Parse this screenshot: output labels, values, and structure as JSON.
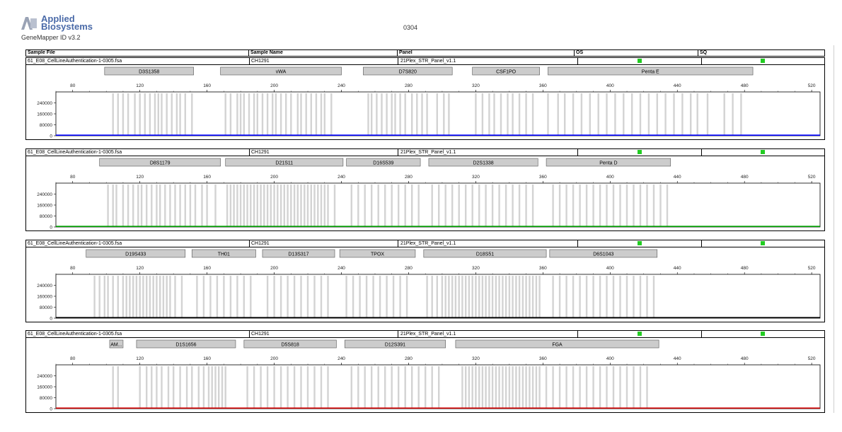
{
  "header": {
    "brand_line1": "Applied",
    "brand_line2": "Biosystems",
    "app_version": "GeneMapper ID v3.2",
    "report_id": "0304"
  },
  "table": {
    "col_sample_file": "Sample File",
    "col_sample_name": "Sample Name",
    "col_panel": "Panel",
    "col_os": "OS",
    "col_sq": "SQ"
  },
  "sample": {
    "file": "61_E08_CellLineAuthentication-1-0305.fsa",
    "name": "CH1291",
    "panel": "21Plex_STR_Panel_v1.1"
  },
  "colors": {
    "quality_flag": "#22cc22",
    "bin": "#d3d3d3",
    "marker_bar": "#cccccc",
    "panel_traces": [
      "#0000ff",
      "#00a000",
      "#000000",
      "#d00000"
    ]
  },
  "chart_data": [
    {
      "type": "line",
      "xlim": [
        70,
        525
      ],
      "ylim": [
        0,
        320000
      ],
      "x_ticks": [
        80,
        120,
        160,
        200,
        240,
        280,
        320,
        360,
        400,
        440,
        480,
        520
      ],
      "y_ticks": [
        0,
        80000,
        160000,
        240000
      ],
      "y_tick_labels": [
        "0",
        "80000",
        "160000",
        "240000"
      ],
      "trace_color": "#0000ff",
      "markers": [
        {
          "name": "D3S1358",
          "start": 99,
          "end": 152
        },
        {
          "name": "vWA",
          "start": 168,
          "end": 240
        },
        {
          "name": "D7S820",
          "start": 253,
          "end": 306
        },
        {
          "name": "CSF1PO",
          "start": 318,
          "end": 358
        },
        {
          "name": "Penta E",
          "start": 363,
          "end": 485
        }
      ],
      "bins": [
        104,
        107,
        110,
        113,
        117,
        120,
        123,
        126,
        129,
        131,
        133,
        136,
        139,
        142,
        144,
        147,
        151,
        171,
        174,
        178,
        180,
        182,
        185,
        188,
        190,
        193,
        196,
        199,
        201,
        204,
        207,
        210,
        214,
        216,
        219,
        222,
        225,
        228,
        230,
        234,
        256,
        258,
        261,
        264,
        267,
        270,
        272,
        275,
        278,
        282,
        285,
        288,
        291,
        297,
        301,
        304,
        320,
        324,
        328,
        331,
        335,
        339,
        342,
        346,
        350,
        354,
        363,
        369,
        373,
        378,
        383,
        388,
        393,
        398,
        403,
        408,
        413,
        418,
        423,
        428,
        433,
        438,
        443,
        448,
        452,
        458,
        468,
        473,
        478
      ]
    },
    {
      "type": "line",
      "xlim": [
        70,
        525
      ],
      "ylim": [
        0,
        320000
      ],
      "x_ticks": [
        80,
        120,
        160,
        200,
        240,
        280,
        320,
        360,
        400,
        440,
        480,
        520
      ],
      "y_ticks": [
        0,
        80000,
        160000,
        240000
      ],
      "y_tick_labels": [
        "0",
        "80000",
        "160000",
        "240000"
      ],
      "trace_color": "#00a000",
      "markers": [
        {
          "name": "D8S1179",
          "start": 96,
          "end": 168
        },
        {
          "name": "D21S11",
          "start": 171,
          "end": 241
        },
        {
          "name": "D16S539",
          "start": 243,
          "end": 287
        },
        {
          "name": "D2S1338",
          "start": 292,
          "end": 357
        },
        {
          "name": "Penta D",
          "start": 362,
          "end": 436
        }
      ],
      "bins": [
        101,
        104,
        106,
        110,
        113,
        116,
        119,
        121,
        124,
        127,
        130,
        132,
        135,
        138,
        141,
        144,
        147,
        150,
        153,
        157,
        160,
        165,
        172,
        174,
        176,
        178,
        180,
        182,
        184,
        186,
        188,
        190,
        192,
        194,
        196,
        198,
        200,
        202,
        204,
        206,
        208,
        210,
        212,
        214,
        216,
        218,
        220,
        222,
        224,
        226,
        228,
        230,
        232,
        236,
        246,
        250,
        254,
        258,
        262,
        266,
        270,
        274,
        278,
        282,
        286,
        294,
        298,
        302,
        306,
        310,
        314,
        318,
        322,
        326,
        330,
        334,
        338,
        342,
        346,
        350,
        354,
        366,
        370,
        374,
        378,
        382,
        386,
        390,
        394,
        398,
        402,
        406,
        410,
        414,
        418,
        422,
        426,
        430,
        434
      ]
    },
    {
      "type": "line",
      "xlim": [
        70,
        525
      ],
      "ylim": [
        0,
        320000
      ],
      "x_ticks": [
        80,
        120,
        160,
        200,
        240,
        280,
        320,
        360,
        400,
        440,
        480,
        520
      ],
      "y_ticks": [
        0,
        80000,
        160000,
        240000
      ],
      "y_tick_labels": [
        "0",
        "80000",
        "160000",
        "240000"
      ],
      "trace_color": "#000000",
      "markers": [
        {
          "name": "D19S433",
          "start": 88,
          "end": 147
        },
        {
          "name": "TH01",
          "start": 151,
          "end": 189
        },
        {
          "name": "D13S317",
          "start": 193,
          "end": 236
        },
        {
          "name": "TPOX",
          "start": 239,
          "end": 284
        },
        {
          "name": "D18S51",
          "start": 289,
          "end": 362
        },
        {
          "name": "D6S1043",
          "start": 364,
          "end": 428
        }
      ],
      "bins": [
        93,
        96,
        99,
        101,
        104,
        107,
        110,
        112,
        114,
        116,
        118,
        120,
        122,
        124,
        126,
        128,
        130,
        132,
        134,
        136,
        138,
        141,
        145,
        154,
        158,
        162,
        166,
        170,
        174,
        178,
        182,
        186,
        196,
        200,
        204,
        208,
        212,
        216,
        220,
        224,
        228,
        232,
        243,
        247,
        251,
        255,
        259,
        263,
        267,
        271,
        275,
        279,
        291,
        294,
        297,
        300,
        302,
        304,
        306,
        308,
        310,
        312,
        314,
        316,
        318,
        320,
        322,
        324,
        326,
        328,
        330,
        332,
        334,
        336,
        338,
        340,
        342,
        344,
        346,
        348,
        350,
        352,
        354,
        356,
        358,
        366,
        370,
        374,
        378,
        382,
        386,
        390,
        394,
        398,
        402,
        406,
        410,
        414,
        418,
        422,
        426
      ]
    },
    {
      "type": "line",
      "xlim": [
        70,
        525
      ],
      "ylim": [
        0,
        320000
      ],
      "x_ticks": [
        80,
        120,
        160,
        200,
        240,
        280,
        320,
        360,
        400,
        440,
        480,
        520
      ],
      "y_ticks": [
        0,
        80000,
        160000,
        240000
      ],
      "y_tick_labels": [
        "0",
        "80000",
        "160000",
        "240000"
      ],
      "trace_color": "#d00000",
      "markers": [
        {
          "name": "AM...",
          "start": 102,
          "end": 110
        },
        {
          "name": "D1S1656",
          "start": 118,
          "end": 177
        },
        {
          "name": "D5S818",
          "start": 182,
          "end": 237
        },
        {
          "name": "D12S391",
          "start": 242,
          "end": 302
        },
        {
          "name": "FGA",
          "start": 308,
          "end": 429
        }
      ],
      "bins": [
        104,
        107,
        120,
        124,
        127,
        130,
        133,
        137,
        140,
        144,
        148,
        151,
        155,
        158,
        161,
        163,
        165,
        167,
        169,
        171,
        184,
        188,
        192,
        196,
        200,
        204,
        208,
        212,
        216,
        220,
        224,
        228,
        232,
        246,
        250,
        254,
        258,
        262,
        266,
        270,
        274,
        278,
        282,
        286,
        290,
        294,
        298,
        312,
        314,
        316,
        318,
        320,
        322,
        324,
        326,
        328,
        330,
        332,
        334,
        336,
        338,
        340,
        342,
        344,
        346,
        348,
        350,
        352,
        354,
        356,
        358,
        362,
        366,
        370,
        374,
        378,
        382,
        386,
        390,
        394,
        398,
        402,
        406,
        410,
        414,
        418,
        422
      ]
    }
  ]
}
